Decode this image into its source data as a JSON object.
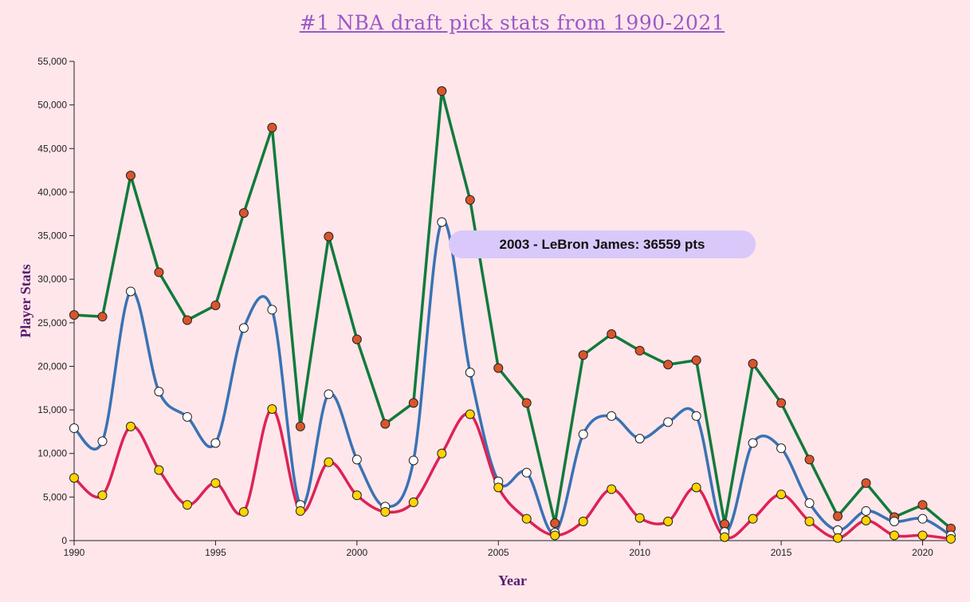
{
  "chart_data": {
    "type": "line",
    "title": "#1 NBA draft pick stats from 1990-2021",
    "xlabel": "Year",
    "ylabel": "Player Stats",
    "xlim": [
      1990,
      2021
    ],
    "ylim": [
      0,
      55000
    ],
    "x_ticks": [
      1990,
      1995,
      2000,
      2005,
      2010,
      2015,
      2020
    ],
    "x_tick_labels": [
      "1990",
      "1995",
      "2000",
      "2005",
      "2010",
      "2015",
      "2020"
    ],
    "y_ticks": [
      0,
      5000,
      10000,
      15000,
      20000,
      25000,
      30000,
      35000,
      40000,
      45000,
      50000,
      55000
    ],
    "y_tick_labels": [
      "0",
      "5,000",
      "10,000",
      "15,000",
      "20,000",
      "25,000",
      "30,000",
      "35,000",
      "40,000",
      "45,000",
      "50,000",
      "55,000"
    ],
    "x": [
      1990,
      1991,
      1992,
      1993,
      1994,
      1995,
      1996,
      1997,
      1998,
      1999,
      2000,
      2001,
      2002,
      2003,
      2004,
      2005,
      2006,
      2007,
      2008,
      2009,
      2010,
      2011,
      2012,
      2013,
      2014,
      2015,
      2016,
      2017,
      2018,
      2019,
      2020,
      2021
    ],
    "series": [
      {
        "name": "green-series",
        "color": "#127a3c",
        "marker_color": "#d9552b",
        "curve": "linear",
        "values": [
          25900,
          25700,
          41900,
          30800,
          25300,
          27000,
          37600,
          47400,
          13100,
          34900,
          23100,
          13400,
          15800,
          51600,
          39100,
          19800,
          15800,
          2000,
          21300,
          23700,
          21800,
          20200,
          20700,
          1900,
          20300,
          15800,
          9300,
          2800,
          6600,
          2700,
          4100,
          1400
        ]
      },
      {
        "name": "blue-series",
        "color": "#3972b4",
        "marker_color": "#ffffff",
        "curve": "smooth",
        "values": [
          12900,
          11400,
          28600,
          17100,
          14200,
          11200,
          24400,
          26500,
          4100,
          16800,
          9300,
          3900,
          9200,
          36559,
          19300,
          6800,
          7800,
          900,
          12200,
          14300,
          11700,
          13600,
          14300,
          1000,
          11200,
          10600,
          4300,
          1200,
          3400,
          2200,
          2500,
          600
        ]
      },
      {
        "name": "red-series",
        "color": "#dd2356",
        "marker_color": "#ffd400",
        "curve": "smooth",
        "values": [
          7200,
          5200,
          13100,
          8100,
          4100,
          6600,
          3300,
          15100,
          3400,
          9000,
          5200,
          3300,
          4400,
          10000,
          14500,
          6100,
          2500,
          600,
          2200,
          5900,
          2600,
          2200,
          6100,
          400,
          2500,
          5300,
          2200,
          300,
          2300,
          600,
          600,
          200
        ]
      }
    ],
    "tooltip": {
      "text": "2003 - LeBron James: 36559 pts",
      "year": 2003,
      "value": 36559
    }
  }
}
